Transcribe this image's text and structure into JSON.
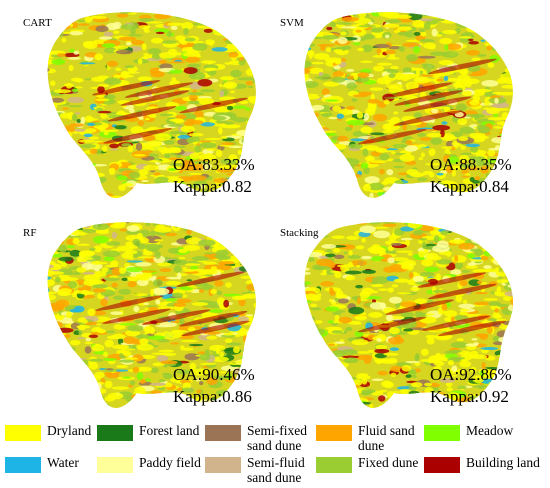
{
  "panels": [
    {
      "label": "CART",
      "oa": "OA:83.33%",
      "kappa": "Kappa:0.82"
    },
    {
      "label": "SVM",
      "oa": "OA:88.35%",
      "kappa": "Kappa:0.84"
    },
    {
      "label": "RF",
      "oa": "OA:90.46%",
      "kappa": "Kappa:0.86"
    },
    {
      "label": "Stacking",
      "oa": "OA:92.86%",
      "kappa": "Kappa:0.92"
    }
  ],
  "legend": [
    {
      "label": "Dryland",
      "color": "#ffff00"
    },
    {
      "label": "Forest land",
      "color": "#1a7a1a"
    },
    {
      "label": "Semi-fixed sand dune",
      "color": "#9b7455"
    },
    {
      "label": "Fluid sand dune",
      "color": "#ffa500"
    },
    {
      "label": "Meadow",
      "color": "#80ff00"
    },
    {
      "label": "Water",
      "color": "#1eb4e6"
    },
    {
      "label": "Paddy field",
      "color": "#ffff99"
    },
    {
      "label": "Semi-fluid sand dune",
      "color": "#d2b48c"
    },
    {
      "label": "Fixed dune",
      "color": "#9acd32"
    },
    {
      "label": "Building land",
      "color": "#aa0000"
    }
  ]
}
